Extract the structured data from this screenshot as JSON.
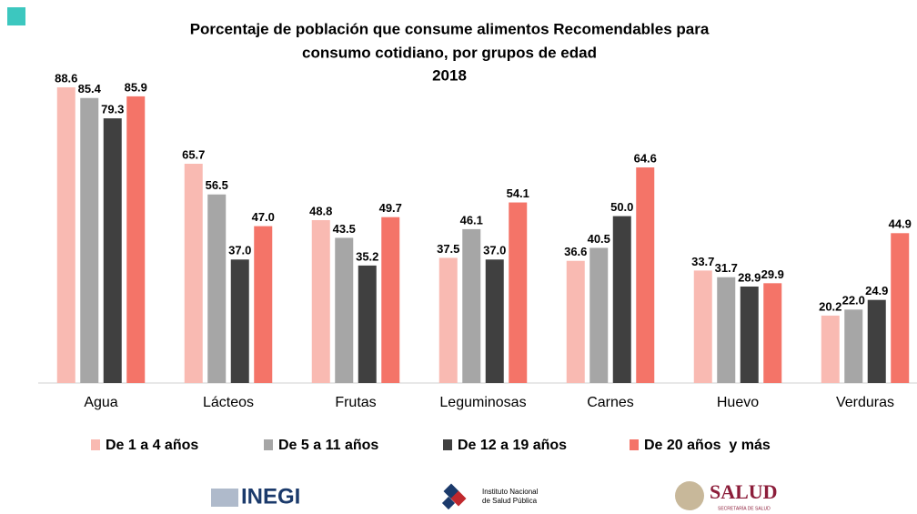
{
  "chart_data": {
    "type": "bar",
    "title": [
      "Porcentaje de población que consume alimentos Recomendables para",
      "consumo cotidiano, por grupos de edad",
      "2018"
    ],
    "categories": [
      "Agua",
      "Lácteos",
      "Frutas",
      "Leguminosas",
      "Carnes",
      "Huevo",
      "Verduras"
    ],
    "series": [
      {
        "name": "De 1 a 4 años",
        "color": "#f9bab2",
        "values": [
          88.6,
          65.7,
          48.8,
          37.5,
          36.6,
          33.7,
          20.2
        ],
        "value_labels": [
          "88.6",
          "65.7",
          "48.8",
          "37.5",
          "36.6",
          "33.7",
          "20.2"
        ]
      },
      {
        "name": "De 5 a 11 años",
        "color": "#a6a6a6",
        "values": [
          85.4,
          56.5,
          43.5,
          46.1,
          40.5,
          31.7,
          22.0
        ],
        "value_labels": [
          "85.4",
          "56.5",
          "43.5",
          "46.1",
          "40.5",
          "31.7",
          "22.0"
        ]
      },
      {
        "name": "De 12 a 19 años",
        "color": "#404040",
        "values": [
          79.3,
          37.0,
          35.2,
          37.0,
          50.0,
          28.9,
          24.9
        ],
        "value_labels": [
          "79.3",
          "37.0",
          "35.2",
          "37.0",
          "50.0",
          "28.9",
          "24.9"
        ]
      },
      {
        "name": "De 20 años  y más",
        "color": "#f47468",
        "values": [
          85.9,
          47.0,
          49.7,
          54.1,
          64.6,
          29.9,
          44.9
        ],
        "value_labels": [
          "85.9",
          "47.0",
          "49.7",
          "54.1",
          "64.6",
          "29.9",
          "44.9"
        ]
      }
    ],
    "logos": [
      "INEGI",
      "Instituto Nacional",
      "de Salud Pública",
      "SALUD",
      "SECRETARÍA DE SALUD"
    ]
  }
}
